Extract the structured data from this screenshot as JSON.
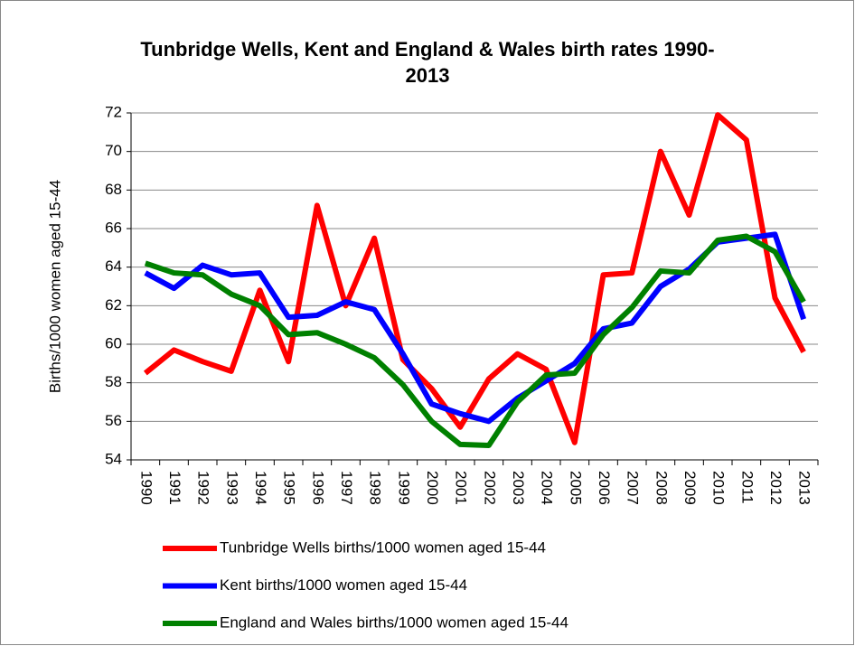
{
  "chart_data": {
    "type": "line",
    "title": "Tunbridge Wells, Kent and England & Wales birth rates 1990-2013",
    "y_label": "Births/1000 women aged 15-44",
    "categories": [
      "1990",
      "1991",
      "1992",
      "1993",
      "1994",
      "1995",
      "1996",
      "1997",
      "1998",
      "1999",
      "2000",
      "2001",
      "2002",
      "2003",
      "2004",
      "2005",
      "2006",
      "2007",
      "2008",
      "2009",
      "2010",
      "2011",
      "2012",
      "2013"
    ],
    "series": [
      {
        "name": "Tunbridge Wells births/1000 women aged 15-44",
        "color": "#ff0000",
        "values": [
          58.5,
          59.7,
          59.1,
          58.6,
          62.8,
          59.1,
          67.2,
          62.0,
          65.5,
          59.2,
          57.7,
          55.7,
          58.2,
          59.5,
          58.7,
          54.9,
          63.6,
          63.7,
          70.0,
          66.7,
          71.9,
          70.6,
          62.4,
          59.6
        ]
      },
      {
        "name": "Kent births/1000 women aged 15-44",
        "color": "#0000ff",
        "values": [
          63.7,
          62.9,
          64.1,
          63.6,
          63.7,
          61.4,
          61.5,
          62.2,
          61.8,
          59.5,
          56.9,
          56.4,
          56.0,
          57.2,
          58.1,
          59.0,
          60.8,
          61.1,
          63.0,
          63.9,
          65.3,
          65.5,
          65.7,
          61.3
        ]
      },
      {
        "name": "England and Wales births/1000 women aged 15-44",
        "color": "#008000",
        "values": [
          64.2,
          63.7,
          63.6,
          62.6,
          62.0,
          60.5,
          60.6,
          60.0,
          59.3,
          57.9,
          56.0,
          54.8,
          54.75,
          57.0,
          58.4,
          58.5,
          60.5,
          61.9,
          63.8,
          63.7,
          65.4,
          65.6,
          64.8,
          62.2
        ]
      }
    ],
    "ylim": [
      54,
      72
    ],
    "yticks": [
      54,
      56,
      58,
      60,
      62,
      64,
      66,
      68,
      70,
      72
    ],
    "grid": true,
    "legend": "bottom"
  }
}
